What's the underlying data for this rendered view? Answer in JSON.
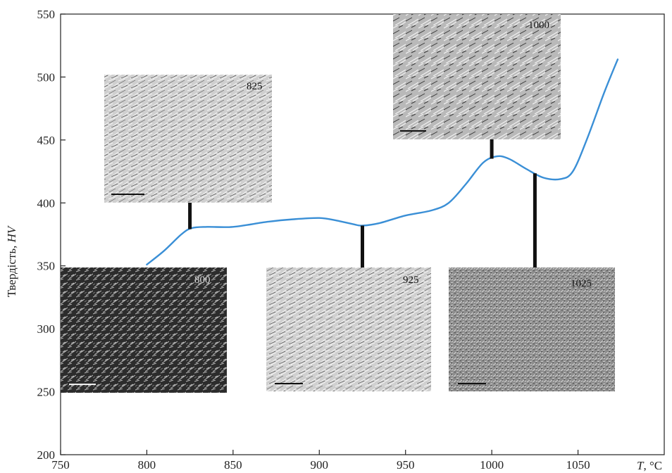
{
  "chart_data": {
    "type": "line",
    "ylabel_text": "Твердість, ",
    "ylabel_italic": "HV",
    "xlabel_italic": "T",
    "xlabel_unit": ", °C",
    "xlim": [
      750,
      1100
    ],
    "ylim": [
      200,
      550
    ],
    "x_ticks": [
      750,
      800,
      850,
      900,
      950,
      1000,
      1050
    ],
    "y_ticks": [
      200,
      250,
      300,
      350,
      400,
      450,
      500,
      550
    ],
    "series": [
      {
        "color": "#3a8fd6",
        "x": [
          800,
          810,
          820,
          826,
          835,
          850,
          870,
          885,
          900,
          910,
          920,
          925,
          935,
          950,
          965,
          975,
          985,
          995,
          1003,
          1010,
          1020,
          1030,
          1040,
          1047,
          1055,
          1065,
          1073
        ],
        "y": [
          351,
          362,
          375,
          380,
          381,
          381,
          385,
          387,
          388,
          386,
          383,
          382,
          384,
          390,
          394,
          400,
          415,
          432,
          437,
          435,
          427,
          420,
          419,
          425,
          450,
          487,
          514
        ]
      }
    ],
    "micrographs": [
      {
        "label": "825",
        "temperature": 825,
        "tone": "light",
        "label_color": "#111111"
      },
      {
        "label": "1000",
        "temperature": 1000,
        "tone": "grain",
        "label_color": "#111111"
      },
      {
        "label": "800",
        "temperature": 800,
        "tone": "dark",
        "label_color": "#dddddd"
      },
      {
        "label": "925",
        "temperature": 925,
        "tone": "light",
        "label_color": "#111111"
      },
      {
        "label": "1025",
        "temperature": 1025,
        "tone": "mid",
        "label_color": "#111111"
      }
    ]
  }
}
